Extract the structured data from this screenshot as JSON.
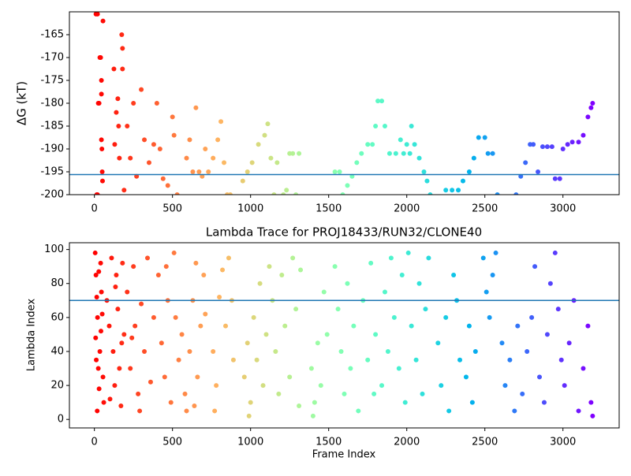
{
  "chart_data": [
    {
      "type": "scatter",
      "ylabel": "ΔG (kT)",
      "colormap": "rainbow_r",
      "xlim": [
        -160,
        3360
      ],
      "xticks": [
        0,
        500,
        1000,
        1500,
        2000,
        2500,
        3000
      ],
      "ylim": [
        -200,
        -160
      ],
      "yticks": [
        -200,
        -195,
        -190,
        -185,
        -180,
        -175,
        -170,
        -165
      ],
      "hline": -195.6,
      "hline_color": "#1f77b4",
      "x": [
        10,
        20,
        30,
        25,
        35,
        40,
        45,
        45,
        45,
        48,
        50,
        52,
        15,
        20,
        55,
        125,
        130,
        140,
        150,
        155,
        160,
        175,
        180,
        180,
        190,
        210,
        230,
        250,
        270,
        300,
        320,
        350,
        380,
        400,
        420,
        440,
        470,
        500,
        510,
        530,
        590,
        610,
        630,
        650,
        670,
        690,
        710,
        730,
        760,
        790,
        810,
        830,
        850,
        870,
        950,
        980,
        1010,
        1050,
        1090,
        1110,
        1130,
        1150,
        1170,
        1210,
        1230,
        1250,
        1270,
        1290,
        1310,
        1540,
        1570,
        1590,
        1620,
        1650,
        1680,
        1710,
        1750,
        1780,
        1800,
        1815,
        1840,
        1860,
        1890,
        1930,
        1960,
        1980,
        2000,
        2020,
        2030,
        2050,
        2080,
        2110,
        2130,
        2150,
        2250,
        2290,
        2330,
        2360,
        2400,
        2430,
        2460,
        2500,
        2520,
        2550,
        2580,
        2700,
        2730,
        2760,
        2790,
        2810,
        2840,
        2870,
        2900,
        2930,
        2950,
        2980,
        3000,
        3030,
        3060,
        3100,
        3130,
        3160,
        3180,
        3190
      ],
      "y": [
        -160.5,
        -160.5,
        -180,
        -180,
        -170,
        -170,
        -175,
        -178,
        -188,
        -190,
        -195,
        -197,
        -200,
        -200,
        -162,
        -172.5,
        -189,
        -182,
        -179,
        -185,
        -192,
        -165,
        -168,
        -172.5,
        -199,
        -185,
        -192,
        -180,
        -196,
        -177,
        -188,
        -193,
        -189,
        -180,
        -190,
        -196.5,
        -198,
        -183,
        -187,
        -200,
        -192,
        -188,
        -195,
        -181,
        -195,
        -196,
        -190,
        -195,
        -192,
        -188,
        -184,
        -193,
        -200,
        -200,
        -197,
        -195,
        -193,
        -189,
        -187,
        -184.5,
        -192,
        -200,
        -193,
        -200,
        -199,
        -191,
        -191,
        -200,
        -191,
        -195,
        -195,
        -200,
        -198,
        -196,
        -193,
        -191,
        -189,
        -189,
        -185,
        -179.5,
        -179.5,
        -185,
        -191,
        -191,
        -188,
        -191,
        -189,
        -191,
        -185,
        -189,
        -192,
        -195,
        -197,
        -200,
        -199,
        -199,
        -199,
        -197,
        -195,
        -192,
        -187.5,
        -187.5,
        -191,
        -191,
        -200,
        -200,
        -196,
        -193,
        -189,
        -189,
        -195,
        -189.5,
        -189.5,
        -189.5,
        -196.5,
        -196.5,
        -190,
        -189,
        -188.5,
        -188.5,
        -187,
        -183,
        -181,
        -180
      ]
    },
    {
      "type": "scatter",
      "title": "Lambda Trace for PROJ18433/RUN32/CLONE40",
      "xlabel": "Frame Index",
      "ylabel": "Lambda Index",
      "colormap": "rainbow_r",
      "xlim": [
        -160,
        3360
      ],
      "xticks": [
        0,
        500,
        1000,
        1500,
        2000,
        2500,
        3000
      ],
      "ylim": [
        -5,
        104
      ],
      "yticks": [
        0,
        20,
        40,
        60,
        80,
        100
      ],
      "hline": 70,
      "hline_color": "#1f77b4",
      "x": [
        5,
        10,
        15,
        20,
        8,
        12,
        25,
        30,
        18,
        40,
        45,
        50,
        35,
        55,
        60,
        28,
        42,
        80,
        95,
        110,
        120,
        130,
        140,
        150,
        160,
        170,
        180,
        190,
        100,
        135,
        175,
        210,
        230,
        250,
        260,
        280,
        300,
        320,
        340,
        360,
        380,
        290,
        240,
        410,
        430,
        450,
        470,
        490,
        510,
        520,
        540,
        560,
        580,
        590,
        460,
        610,
        630,
        650,
        660,
        680,
        700,
        710,
        640,
        760,
        780,
        800,
        820,
        840,
        860,
        880,
        890,
        770,
        960,
        980,
        1000,
        1020,
        1040,
        1060,
        1080,
        1100,
        990,
        1120,
        1140,
        1160,
        1180,
        1200,
        1220,
        1250,
        1270,
        1290,
        1310,
        1320,
        1390,
        1410,
        1430,
        1450,
        1470,
        1490,
        1400,
        1540,
        1560,
        1580,
        1600,
        1620,
        1640,
        1660,
        1690,
        1720,
        1750,
        1770,
        1790,
        1800,
        1840,
        1860,
        1880,
        1900,
        1920,
        1950,
        1970,
        1990,
        2010,
        2030,
        2060,
        2080,
        2100,
        2120,
        2140,
        2200,
        2220,
        2250,
        2270,
        2300,
        2320,
        2340,
        2380,
        2400,
        2420,
        2440,
        2490,
        2510,
        2530,
        2550,
        2570,
        2610,
        2630,
        2660,
        2690,
        2710,
        2740,
        2770,
        2800,
        2820,
        2850,
        2880,
        2900,
        2920,
        2950,
        2970,
        2990,
        3010,
        3040,
        3070,
        3100,
        3130,
        3160,
        3180,
        3190
      ],
      "y": [
        98,
        85,
        72,
        60,
        48,
        35,
        30,
        18,
        5,
        92,
        75,
        62,
        40,
        25,
        10,
        87,
        52,
        70,
        55,
        95,
        40,
        20,
        85,
        65,
        30,
        8,
        92,
        50,
        12,
        78,
        45,
        75,
        30,
        90,
        55,
        15,
        68,
        40,
        95,
        22,
        60,
        5,
        48,
        85,
        45,
        25,
        70,
        10,
        98,
        60,
        35,
        50,
        15,
        5,
        90,
        40,
        70,
        92,
        25,
        55,
        85,
        62,
        8,
        40,
        20,
        72,
        88,
        55,
        95,
        70,
        35,
        5,
        25,
        45,
        10,
        60,
        35,
        80,
        20,
        50,
        2,
        90,
        70,
        40,
        15,
        85,
        55,
        25,
        95,
        65,
        8,
        88,
        30,
        10,
        45,
        20,
        75,
        50,
        2,
        90,
        65,
        40,
        15,
        80,
        30,
        55,
        5,
        70,
        35,
        92,
        15,
        50,
        20,
        75,
        40,
        95,
        60,
        30,
        85,
        10,
        98,
        55,
        35,
        80,
        15,
        65,
        95,
        45,
        20,
        60,
        5,
        85,
        70,
        35,
        25,
        55,
        10,
        40,
        95,
        75,
        60,
        85,
        98,
        45,
        20,
        35,
        5,
        55,
        15,
        40,
        60,
        90,
        25,
        10,
        50,
        80,
        98,
        65,
        35,
        20,
        45,
        70,
        5,
        30,
        55,
        10,
        2
      ]
    }
  ]
}
